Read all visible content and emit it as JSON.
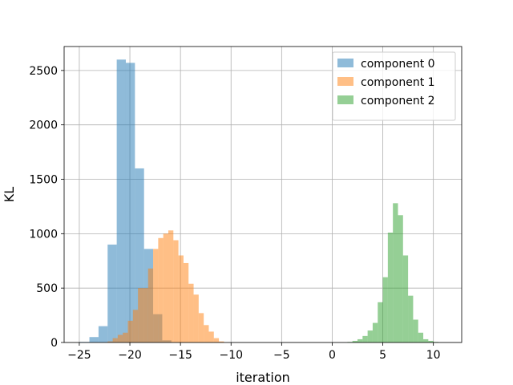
{
  "chart_data": {
    "type": "histogram",
    "xlabel": "iteration",
    "ylabel": "KL",
    "xlim": [
      -26.5,
      12.8
    ],
    "ylim": [
      0,
      2720
    ],
    "xticks": [
      -25,
      -20,
      -15,
      -10,
      -5,
      0,
      5,
      10
    ],
    "xtick_labels": [
      "−25",
      "−20",
      "−15",
      "−10",
      "−5",
      "0",
      "5",
      "10"
    ],
    "yticks": [
      0,
      500,
      1000,
      1500,
      2000,
      2500
    ],
    "ytick_labels": [
      "0",
      "500",
      "1000",
      "1500",
      "2000",
      "2500"
    ],
    "grid": true,
    "legend_position": "top-right",
    "alpha": 0.5,
    "series": [
      {
        "name": "component 0",
        "color": "#1f77b4",
        "bins": [
          {
            "x0": -25.0,
            "x1": -24.0,
            "count": 5
          },
          {
            "x0": -24.0,
            "x1": -23.1,
            "count": 50
          },
          {
            "x0": -23.1,
            "x1": -22.2,
            "count": 150
          },
          {
            "x0": -22.2,
            "x1": -21.3,
            "count": 900
          },
          {
            "x0": -21.3,
            "x1": -20.4,
            "count": 2600
          },
          {
            "x0": -20.4,
            "x1": -19.5,
            "count": 2570
          },
          {
            "x0": -19.5,
            "x1": -18.6,
            "count": 1600
          },
          {
            "x0": -18.6,
            "x1": -17.7,
            "count": 860
          },
          {
            "x0": -17.7,
            "x1": -16.8,
            "count": 260
          },
          {
            "x0": -16.8,
            "x1": -15.9,
            "count": 20
          }
        ]
      },
      {
        "name": "component 1",
        "color": "#ff7f0e",
        "bins": [
          {
            "x0": -22.2,
            "x1": -21.7,
            "count": 10
          },
          {
            "x0": -21.7,
            "x1": -21.2,
            "count": 40
          },
          {
            "x0": -21.2,
            "x1": -20.7,
            "count": 70
          },
          {
            "x0": -20.7,
            "x1": -20.2,
            "count": 90
          },
          {
            "x0": -20.2,
            "x1": -19.7,
            "count": 200
          },
          {
            "x0": -19.7,
            "x1": -19.2,
            "count": 300
          },
          {
            "x0": -19.2,
            "x1": -18.7,
            "count": 500
          },
          {
            "x0": -18.7,
            "x1": -18.2,
            "count": 500
          },
          {
            "x0": -18.2,
            "x1": -17.7,
            "count": 680
          },
          {
            "x0": -17.7,
            "x1": -17.2,
            "count": 860
          },
          {
            "x0": -17.2,
            "x1": -16.7,
            "count": 960
          },
          {
            "x0": -16.7,
            "x1": -16.2,
            "count": 1000
          },
          {
            "x0": -16.2,
            "x1": -15.7,
            "count": 1030
          },
          {
            "x0": -15.7,
            "x1": -15.2,
            "count": 940
          },
          {
            "x0": -15.2,
            "x1": -14.7,
            "count": 800
          },
          {
            "x0": -14.7,
            "x1": -14.2,
            "count": 730
          },
          {
            "x0": -14.2,
            "x1": -13.7,
            "count": 540
          },
          {
            "x0": -13.7,
            "x1": -13.2,
            "count": 440
          },
          {
            "x0": -13.2,
            "x1": -12.7,
            "count": 270
          },
          {
            "x0": -12.7,
            "x1": -12.2,
            "count": 160
          },
          {
            "x0": -12.2,
            "x1": -11.7,
            "count": 100
          },
          {
            "x0": -11.7,
            "x1": -11.2,
            "count": 40
          },
          {
            "x0": -11.2,
            "x1": -10.7,
            "count": 10
          }
        ]
      },
      {
        "name": "component 2",
        "color": "#2ca02c",
        "bins": [
          {
            "x0": 1.5,
            "x1": 2.0,
            "count": 5
          },
          {
            "x0": 2.0,
            "x1": 2.5,
            "count": 15
          },
          {
            "x0": 2.5,
            "x1": 3.0,
            "count": 30
          },
          {
            "x0": 3.0,
            "x1": 3.5,
            "count": 60
          },
          {
            "x0": 3.5,
            "x1": 4.0,
            "count": 110
          },
          {
            "x0": 4.0,
            "x1": 4.5,
            "count": 180
          },
          {
            "x0": 4.5,
            "x1": 5.0,
            "count": 370
          },
          {
            "x0": 5.0,
            "x1": 5.5,
            "count": 600
          },
          {
            "x0": 5.5,
            "x1": 6.0,
            "count": 1010
          },
          {
            "x0": 6.0,
            "x1": 6.5,
            "count": 1280
          },
          {
            "x0": 6.5,
            "x1": 7.0,
            "count": 1170
          },
          {
            "x0": 7.0,
            "x1": 7.5,
            "count": 800
          },
          {
            "x0": 7.5,
            "x1": 8.0,
            "count": 430
          },
          {
            "x0": 8.0,
            "x1": 8.5,
            "count": 210
          },
          {
            "x0": 8.5,
            "x1": 9.0,
            "count": 90
          },
          {
            "x0": 9.0,
            "x1": 9.5,
            "count": 30
          },
          {
            "x0": 9.5,
            "x1": 10.0,
            "count": 15
          },
          {
            "x0": 10.0,
            "x1": 10.5,
            "count": 5
          }
        ]
      }
    ]
  }
}
